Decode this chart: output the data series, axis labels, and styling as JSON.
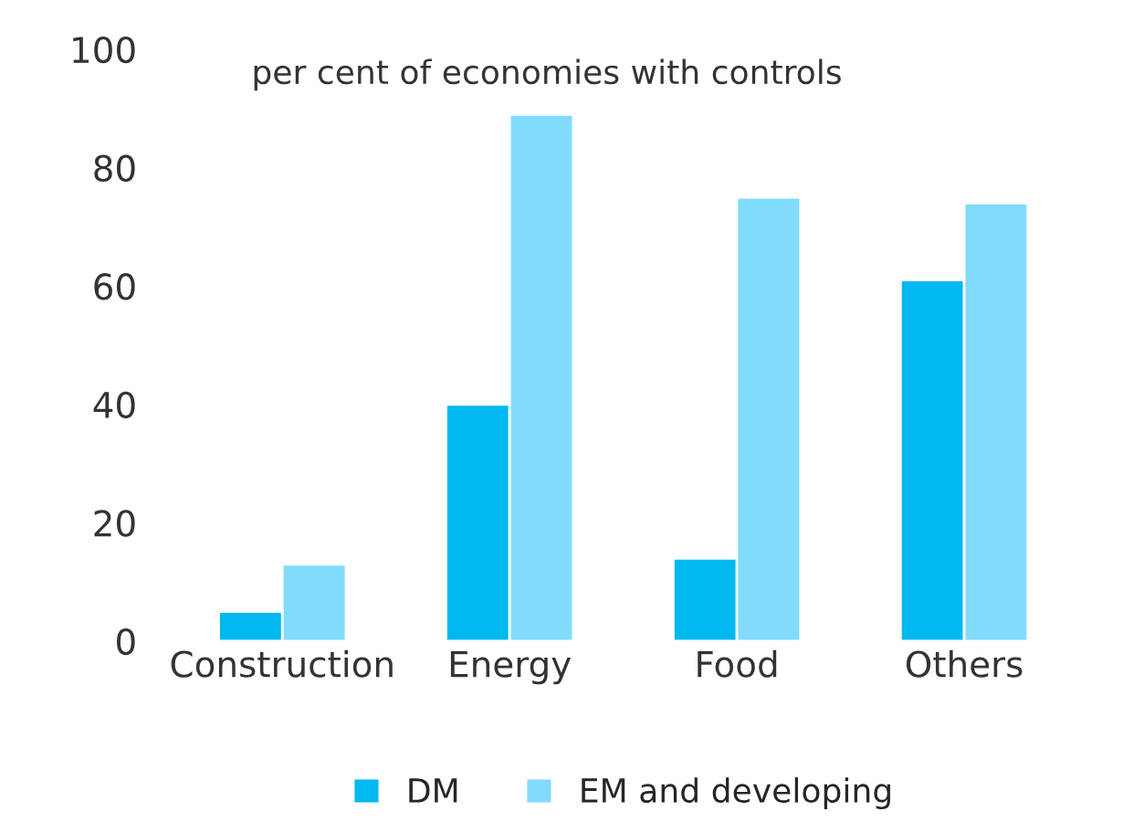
{
  "chart_data": {
    "type": "bar",
    "ylabel": "per cent of economies with controls",
    "categories": [
      "Construction",
      "Energy",
      "Food",
      "Others"
    ],
    "series": [
      {
        "name": "DM",
        "color": "#00b8f0",
        "values": [
          5,
          40,
          14,
          61
        ]
      },
      {
        "name": "EM and developing",
        "color": "#80dcfa",
        "values": [
          13,
          89,
          75,
          74
        ]
      }
    ],
    "ylim": [
      0,
      100
    ],
    "yticks": [
      0,
      20,
      40,
      60,
      80,
      100
    ],
    "grid": false,
    "legend": "bottom"
  }
}
